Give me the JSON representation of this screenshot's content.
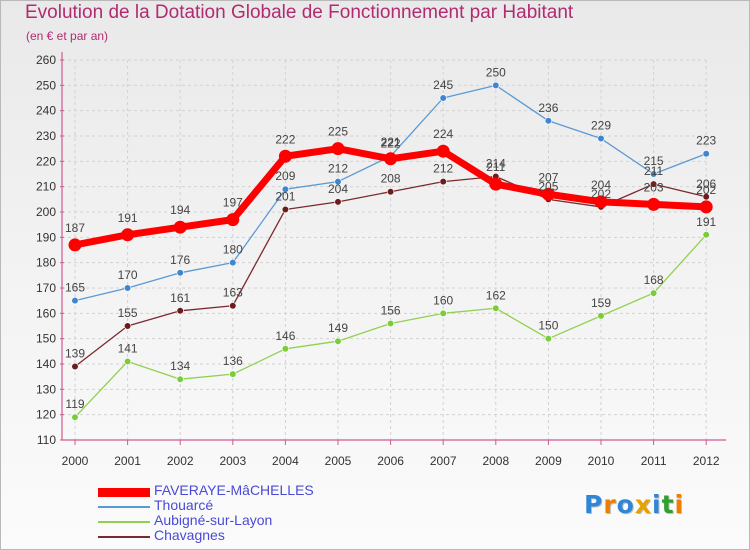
{
  "header": {
    "title": "Evolution de la Dotation Globale de Fonctionnement par Habitant",
    "subtitle": "(en € et par an)"
  },
  "logo": {
    "text": "Proxiti",
    "letters": [
      "P",
      "r",
      "o",
      "x",
      "i",
      "t",
      "i"
    ],
    "letter_colors": [
      "#2f86d6",
      "#ef7d00",
      "#2f86d6",
      "#e8a200",
      "#2f86d6",
      "#2fa02f",
      "#ef7d00"
    ]
  },
  "chart_data": {
    "type": "line",
    "title": "Evolution de la Dotation Globale de Fonctionnement par Habitant",
    "subtitle": "(en € et par an)",
    "xlabel": "",
    "ylabel": "",
    "x": [
      "2000",
      "2001",
      "2002",
      "2003",
      "2004",
      "2005",
      "2006",
      "2007",
      "2008",
      "2009",
      "2010",
      "2011",
      "2012"
    ],
    "ylim": [
      110,
      260
    ],
    "yticks": [
      110,
      120,
      130,
      140,
      150,
      160,
      170,
      180,
      190,
      200,
      210,
      220,
      230,
      240,
      250,
      260
    ],
    "grid": true,
    "legend_position": "bottom-left",
    "series": [
      {
        "name": "Aubigné-sur-Layon",
        "color": "#92d050",
        "marker": "#7acc3c",
        "width": 1.3,
        "values": [
          119,
          141,
          134,
          136,
          146,
          149,
          156,
          160,
          162,
          150,
          159,
          168,
          191
        ]
      },
      {
        "name": "Chavagnes",
        "color": "#7a2a2e",
        "marker": "#6b1c1c",
        "width": 1.3,
        "values": [
          139,
          155,
          161,
          163,
          201,
          204,
          208,
          212,
          214,
          205,
          202,
          211,
          206
        ]
      },
      {
        "name": "Thouarcé",
        "color": "#5a9ad4",
        "marker": "#3f86cf",
        "width": 1.3,
        "values": [
          165,
          170,
          176,
          180,
          209,
          212,
          222,
          245,
          250,
          236,
          229,
          215,
          223
        ]
      },
      {
        "name": "FAVERAYE-MâCHELLES",
        "color": "#ff0000",
        "marker": "#ff0000",
        "width": 7,
        "values": [
          187,
          191,
          194,
          197,
          222,
          225,
          221,
          224,
          211,
          207,
          204,
          203,
          202
        ]
      }
    ],
    "legend_order": [
      "FAVERAYE-MâCHELLES",
      "Thouarcé",
      "Aubigné-sur-Layon",
      "Chavagnes"
    ]
  }
}
